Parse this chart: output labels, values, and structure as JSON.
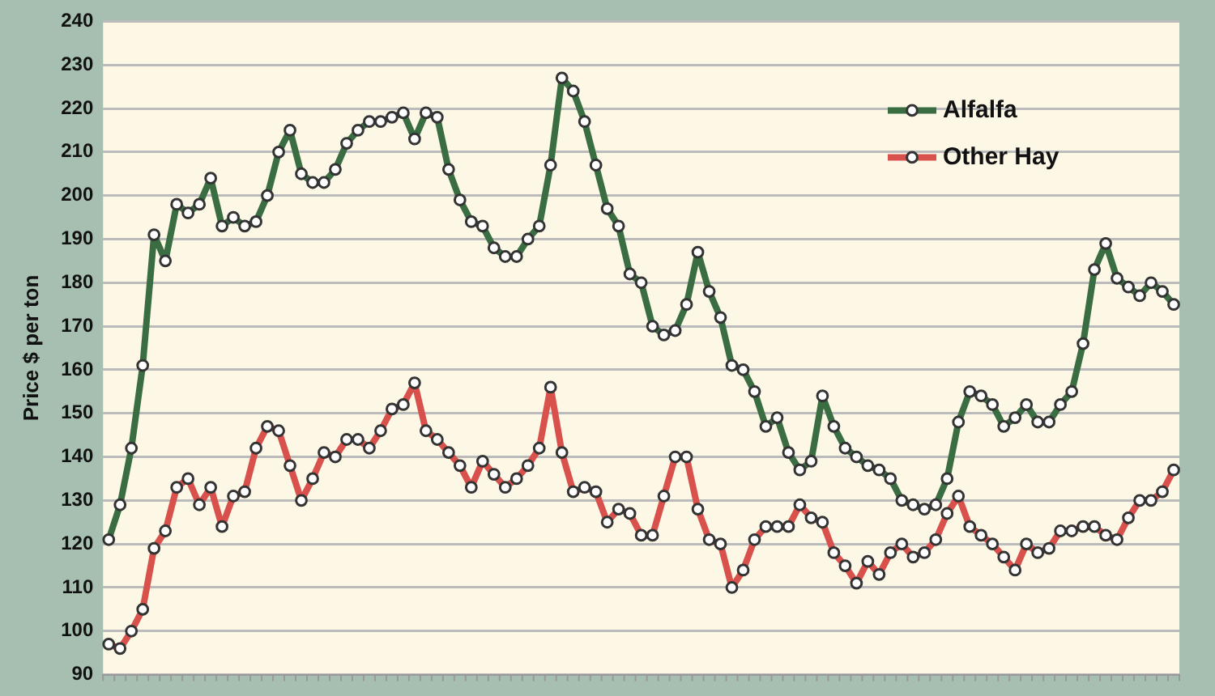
{
  "chart_data": {
    "type": "line",
    "ylabel": "Price $ per ton",
    "categories": [
      null,
      null,
      null,
      null,
      null,
      null,
      null,
      null,
      null,
      null,
      null,
      null,
      null,
      null,
      null,
      null,
      null,
      null,
      null,
      null,
      null,
      null,
      null,
      null,
      null,
      null,
      null,
      null,
      null,
      null,
      null,
      null,
      null,
      null,
      null,
      null,
      null,
      null,
      null,
      null,
      null,
      null,
      null,
      null,
      null,
      null,
      null,
      null,
      null,
      null,
      null,
      null,
      null,
      null,
      null,
      null,
      null,
      null,
      null,
      null,
      null,
      null,
      null,
      null,
      null,
      null,
      null,
      null,
      null,
      null,
      null,
      null,
      null,
      null,
      null,
      null,
      null,
      null,
      null,
      null,
      null,
      null,
      null,
      null,
      null,
      null,
      null,
      null,
      null,
      null,
      null,
      null,
      null,
      null,
      null
    ],
    "series": [
      {
        "name": "Alfalfa",
        "color": "#3a6e42",
        "values": [
          121,
          129,
          142,
          161,
          191,
          185,
          198,
          196,
          198,
          204,
          193,
          195,
          193,
          194,
          200,
          210,
          215,
          205,
          203,
          203,
          206,
          212,
          215,
          217,
          217,
          218,
          219,
          213,
          219,
          218,
          206,
          199,
          194,
          193,
          188,
          186,
          186,
          190,
          193,
          207,
          227,
          224,
          217,
          207,
          197,
          193,
          182,
          180,
          170,
          168,
          169,
          175,
          187,
          178,
          172,
          161,
          160,
          155,
          147,
          149,
          141,
          137,
          139,
          154,
          147,
          142,
          140,
          138,
          137,
          135,
          130,
          129,
          128,
          129,
          135,
          148,
          155,
          154,
          152,
          147,
          149,
          152,
          148,
          148,
          152,
          155,
          166,
          183,
          189,
          181,
          179,
          177,
          180,
          178,
          175
        ]
      },
      {
        "name": "Other Hay",
        "color": "#d9514c",
        "values": [
          97,
          96,
          100,
          105,
          119,
          123,
          133,
          135,
          129,
          133,
          124,
          131,
          132,
          142,
          147,
          146,
          138,
          130,
          135,
          141,
          140,
          144,
          144,
          142,
          146,
          151,
          152,
          157,
          146,
          144,
          141,
          138,
          133,
          139,
          136,
          133,
          135,
          138,
          142,
          156,
          141,
          132,
          133,
          132,
          125,
          128,
          127,
          122,
          122,
          131,
          140,
          140,
          128,
          121,
          120,
          110,
          114,
          121,
          124,
          124,
          124,
          129,
          126,
          125,
          118,
          115,
          111,
          116,
          113,
          118,
          120,
          117,
          118,
          121,
          127,
          131,
          124,
          122,
          120,
          117,
          114,
          120,
          118,
          119,
          123,
          123,
          124,
          124,
          122,
          121,
          126,
          130,
          130,
          132,
          137
        ]
      }
    ],
    "ylim": [
      90,
      240
    ],
    "yticks": [
      90,
      100,
      110,
      120,
      130,
      140,
      150,
      160,
      170,
      180,
      190,
      200,
      210,
      220,
      230,
      240
    ],
    "grid": "y",
    "legend": "top right",
    "marker": "circle",
    "line_style": "solid",
    "tick_labels": "y"
  }
}
